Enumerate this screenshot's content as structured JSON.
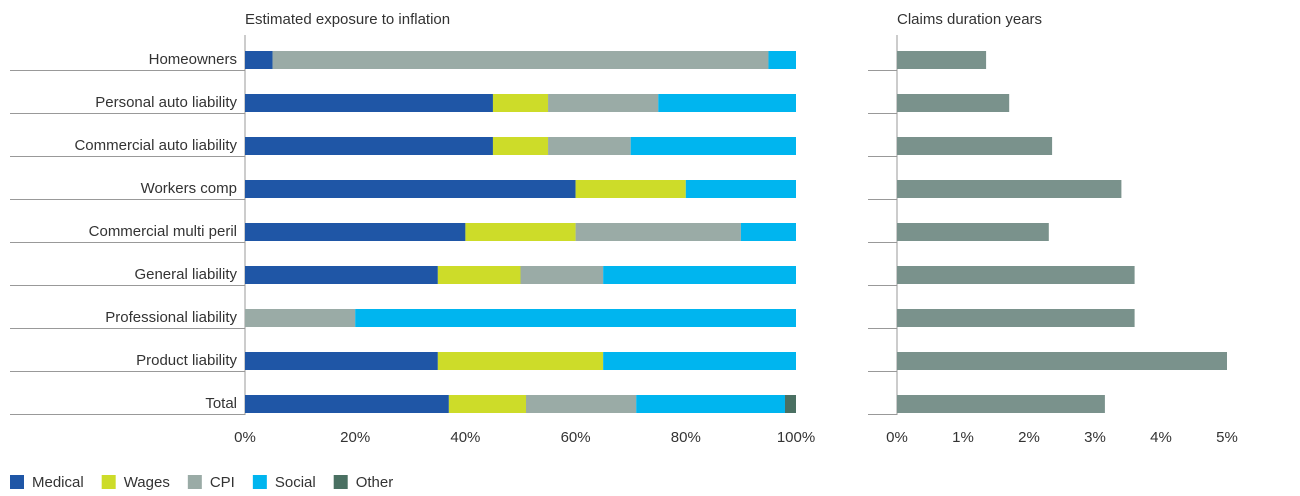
{
  "chart_data": [
    {
      "type": "bar",
      "orientation": "horizontal",
      "stacked": true,
      "title": "Estimated exposure to inflation",
      "categories": [
        "Homeowners",
        "Personal auto liability",
        "Commercial auto liability",
        "Workers comp",
        "Commercial multi peril",
        "General liability",
        "Professional liability",
        "Product liability",
        "Total"
      ],
      "series": [
        {
          "name": "Medical",
          "color": "#1f56a6",
          "values": [
            5,
            45,
            45,
            60,
            40,
            35,
            0,
            35,
            37
          ]
        },
        {
          "name": "Wages",
          "color": "#cddc29",
          "values": [
            0,
            10,
            10,
            20,
            20,
            15,
            0,
            30,
            14
          ]
        },
        {
          "name": "CPI",
          "color": "#9aaba6",
          "values": [
            90,
            20,
            15,
            0,
            30,
            15,
            20,
            0,
            20
          ]
        },
        {
          "name": "Social",
          "color": "#00b5ef",
          "values": [
            5,
            25,
            30,
            20,
            10,
            35,
            80,
            35,
            27
          ]
        },
        {
          "name": "Other",
          "color": "#4a7062",
          "values": [
            0,
            0,
            0,
            0,
            0,
            0,
            0,
            0,
            2
          ]
        }
      ],
      "xlim": [
        0,
        100
      ],
      "xticks": [
        {
          "value": 0,
          "label": "0%"
        },
        {
          "value": 20,
          "label": "20%"
        },
        {
          "value": 40,
          "label": "40%"
        },
        {
          "value": 60,
          "label": "60%"
        },
        {
          "value": 80,
          "label": "80%"
        },
        {
          "value": 100,
          "label": "100%"
        }
      ],
      "legend": "bottom-left"
    },
    {
      "type": "bar",
      "orientation": "horizontal",
      "title": "Claims duration years",
      "color": "#7a928c",
      "values": [
        1.35,
        1.7,
        2.35,
        3.4,
        2.3,
        3.6,
        3.6,
        5.0,
        3.15
      ],
      "xlim": [
        0,
        5
      ],
      "xticks": [
        {
          "value": 0,
          "label": "0%"
        },
        {
          "value": 1,
          "label": "1%"
        },
        {
          "value": 2,
          "label": "2%"
        },
        {
          "value": 3,
          "label": "3%"
        },
        {
          "value": 4,
          "label": "4%"
        },
        {
          "value": 5,
          "label": "5%"
        }
      ]
    }
  ]
}
